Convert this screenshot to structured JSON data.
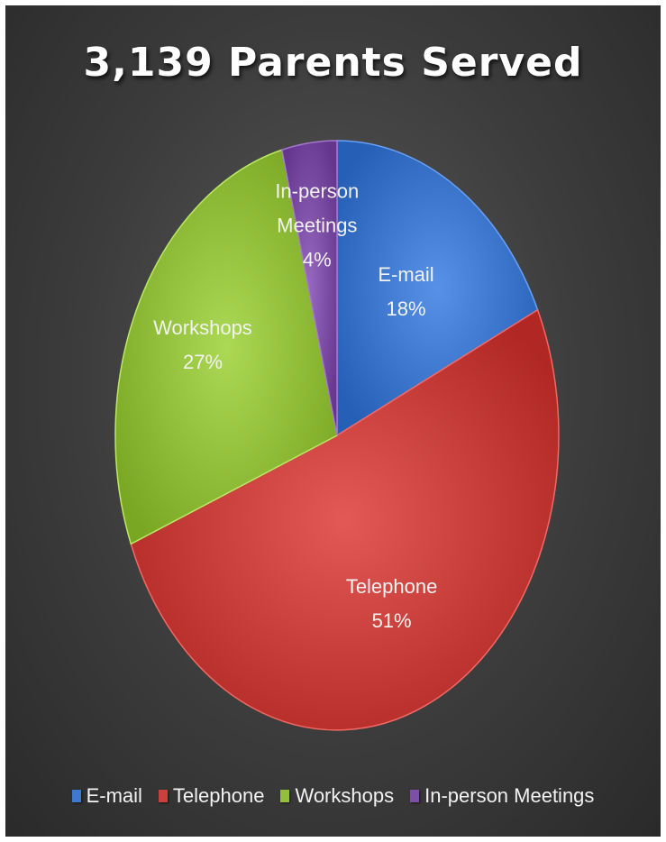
{
  "chart_data": {
    "type": "pie",
    "title": "3,139 Parents Served",
    "slices": [
      {
        "name": "E-mail",
        "value": 18,
        "label": "18%",
        "color": "#3f78cf"
      },
      {
        "name": "Telephone",
        "value": 51,
        "label": "51%",
        "color": "#c9403c"
      },
      {
        "name": "Workshops",
        "value": 27,
        "label": "27%",
        "color": "#93c03c"
      },
      {
        "name": "In-person Meetings",
        "value": 4,
        "label": "4%",
        "color": "#7d4fa6"
      }
    ],
    "legend_position": "bottom",
    "start_angle": "12 o'clock",
    "direction": "clockwise"
  },
  "legend": {
    "items": [
      "E-mail",
      "Telephone",
      "Workshops",
      "In-person Meetings"
    ]
  }
}
